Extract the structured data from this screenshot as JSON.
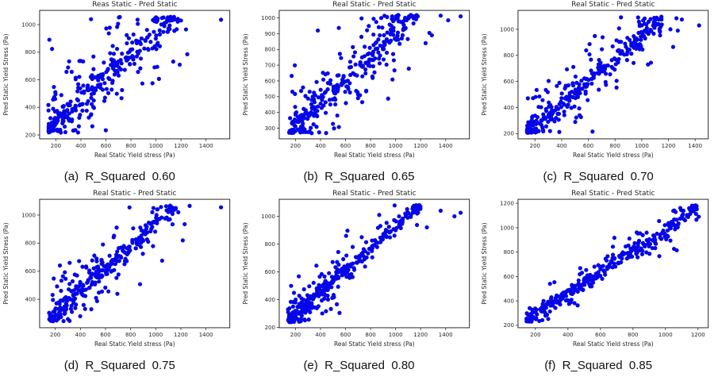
{
  "figure": {
    "background": "#ffffff",
    "rows": 2,
    "cols": 3
  },
  "chart_data": [
    {
      "id": "a",
      "type": "scatter",
      "title": "Reas Static - Pred Static",
      "xlabel": "Real Static Yield stress (Pa)",
      "ylabel": "Pred Static Yield Stress (Pa)",
      "caption": "(a)  R_Squared  0.60",
      "r_squared": 0.6,
      "dot_color": "#0606e8",
      "frame_color": "#2b2b2b",
      "xlim": [
        70,
        1590
      ],
      "ylim": [
        172,
        1103
      ],
      "xticks": [
        200,
        400,
        600,
        800,
        1000,
        1200,
        1400
      ],
      "yticks": [
        200,
        400,
        600,
        800,
        1000
      ],
      "gen": {
        "seed": 11,
        "n": 330,
        "x_min": 140,
        "x_max": 1180,
        "x_pow": 1.25,
        "slope": 0.82,
        "intercept": 130,
        "core_frac": 0.55,
        "noise_core": 45,
        "noise_wide": 185,
        "y_clip": [
          215,
          1058
        ]
      },
      "outliers": [
        [
          1520,
          1035
        ],
        [
          1200,
          1030
        ],
        [
          1240,
          965
        ],
        [
          1250,
          785
        ],
        [
          1190,
          710
        ]
      ]
    },
    {
      "id": "b",
      "type": "scatter",
      "title": "Real Static - Pred Static",
      "xlabel": "Real Static Yield stress (Pa)",
      "ylabel": "Pred Static Yield Stress (Pa)",
      "caption": "(b)  R_Squared  0.65",
      "r_squared": 0.65,
      "dot_color": "#0606e8",
      "frame_color": "#2b2b2b",
      "xlim": [
        70,
        1590
      ],
      "ylim": [
        232,
        1048
      ],
      "xticks": [
        200,
        400,
        600,
        800,
        1000,
        1200,
        1400
      ],
      "yticks": [
        300,
        400,
        500,
        600,
        700,
        800,
        900,
        1000
      ],
      "gen": {
        "seed": 22,
        "n": 340,
        "x_min": 150,
        "x_max": 1180,
        "x_pow": 1.25,
        "slope": 0.75,
        "intercept": 160,
        "core_frac": 0.57,
        "noise_core": 40,
        "noise_wide": 160,
        "y_clip": [
          268,
          1020
        ]
      },
      "outliers": [
        [
          1520,
          1010
        ],
        [
          1360,
          1015
        ],
        [
          1420,
          985
        ],
        [
          1270,
          905
        ],
        [
          1290,
          890
        ],
        [
          1240,
          840
        ]
      ]
    },
    {
      "id": "c",
      "type": "scatter",
      "title": "Real Static - Pred Static",
      "xlabel": "Real Static Yield stress (Pa)",
      "ylabel": "Pred Static Yield Stress (Pa)",
      "caption": "(c)  R_Squared  0.70",
      "r_squared": 0.7,
      "dot_color": "#0606e8",
      "frame_color": "#2b2b2b",
      "xlim": [
        73,
        1498
      ],
      "ylim": [
        160,
        1145
      ],
      "xticks": [
        200,
        400,
        600,
        800,
        1000,
        1200,
        1400
      ],
      "yticks": [
        200,
        400,
        600,
        800,
        1000
      ],
      "gen": {
        "seed": 33,
        "n": 340,
        "x_min": 140,
        "x_max": 1150,
        "x_pow": 1.25,
        "slope": 0.85,
        "intercept": 95,
        "core_frac": 0.6,
        "noise_core": 35,
        "noise_wide": 150,
        "y_clip": [
          205,
          1100
        ]
      },
      "outliers": [
        [
          1430,
          1030
        ],
        [
          1260,
          1085
        ],
        [
          1300,
          1075
        ],
        [
          1215,
          1000
        ],
        [
          1270,
          990
        ],
        [
          1235,
          865
        ]
      ]
    },
    {
      "id": "d",
      "type": "scatter",
      "title": "Real Static - Pred Static",
      "xlabel": "Real Static Yield stress (Pa)",
      "ylabel": "Pred Static Yield Stress (Pa)",
      "caption": "(d)  R_Squared  0.75",
      "r_squared": 0.75,
      "dot_color": "#0606e8",
      "frame_color": "#2b2b2b",
      "xlim": [
        75,
        1590
      ],
      "ylim": [
        198,
        1112
      ],
      "xticks": [
        200,
        400,
        600,
        800,
        1000,
        1200,
        1400
      ],
      "yticks": [
        400,
        600,
        800,
        1000
      ],
      "gen": {
        "seed": 44,
        "n": 340,
        "x_min": 150,
        "x_max": 1160,
        "x_pow": 1.25,
        "slope": 0.82,
        "intercept": 130,
        "core_frac": 0.63,
        "noise_core": 33,
        "noise_wide": 135,
        "y_clip": [
          238,
          1068
        ]
      },
      "outliers": [
        [
          1520,
          1055
        ],
        [
          1270,
          1065
        ],
        [
          1180,
          1020
        ],
        [
          1230,
          935
        ],
        [
          1215,
          820
        ]
      ]
    },
    {
      "id": "e",
      "type": "scatter",
      "title": "Real Static - Pred Static",
      "xlabel": "Real Static Yield stress (Pa)",
      "ylabel": "Pred Static Yield Stress (Pa)",
      "caption": "(e)  R_Squared  0.80",
      "r_squared": 0.8,
      "dot_color": "#0606e8",
      "frame_color": "#2b2b2b",
      "xlim": [
        70,
        1590
      ],
      "ylim": [
        198,
        1122
      ],
      "xticks": [
        200,
        400,
        600,
        800,
        1000,
        1200,
        1400
      ],
      "yticks": [
        200,
        400,
        600,
        800,
        1000
      ],
      "gen": {
        "seed": 55,
        "n": 350,
        "x_min": 140,
        "x_max": 1200,
        "x_pow": 1.25,
        "slope": 0.8,
        "intercept": 130,
        "core_frac": 0.65,
        "noise_core": 30,
        "noise_wide": 110,
        "y_clip": [
          238,
          1080
        ]
      },
      "outliers": [
        [
          1520,
          1025
        ],
        [
          1470,
          1000
        ],
        [
          1360,
          1040
        ],
        [
          1250,
          920
        ],
        [
          1190,
          1080
        ]
      ]
    },
    {
      "id": "f",
      "type": "scatter",
      "title": "Real Static - Pred Static",
      "xlabel": "Real Static Yield stress (Pa)",
      "ylabel": "Pred Static Yield Stress (Pa)",
      "caption": "(f)  R_Squared  0.85",
      "r_squared": 0.85,
      "dot_color": "#0606e8",
      "frame_color": "#2b2b2b",
      "xlim": [
        93,
        1263
      ],
      "ylim": [
        180,
        1233
      ],
      "xticks": [
        200,
        400,
        600,
        800,
        1000,
        1200
      ],
      "yticks": [
        200,
        400,
        600,
        800,
        1000,
        1200
      ],
      "gen": {
        "seed": 66,
        "n": 350,
        "x_min": 145,
        "x_max": 1195,
        "x_pow": 1.25,
        "slope": 0.88,
        "intercept": 110,
        "core_frac": 0.68,
        "noise_core": 26,
        "noise_wide": 82,
        "y_clip": [
          230,
          1190
        ]
      },
      "outliers": [
        [
          1205,
          1090
        ]
      ]
    }
  ]
}
